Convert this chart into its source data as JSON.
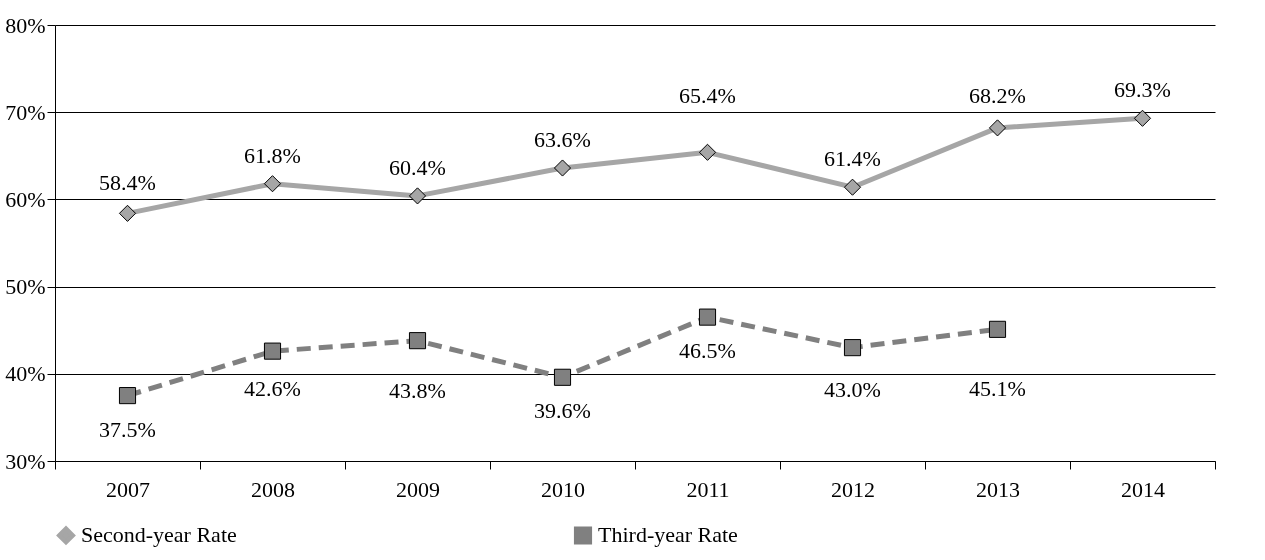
{
  "chart_data": {
    "type": "line",
    "categories": [
      "2007",
      "2008",
      "2009",
      "2010",
      "2011",
      "2012",
      "2013",
      "2014"
    ],
    "series": [
      {
        "name": "Second-year Rate",
        "color": "#a6a6a6",
        "marker": "diamond",
        "line_style": "solid",
        "values": [
          58.4,
          61.8,
          60.4,
          63.6,
          65.4,
          61.4,
          68.2,
          69.3
        ],
        "value_labels": [
          "58.4%",
          "61.8%",
          "60.4%",
          "63.6%",
          "65.4%",
          "61.4%",
          "68.2%",
          "69.3%"
        ]
      },
      {
        "name": "Third-year Rate",
        "color": "#808080",
        "marker": "square",
        "line_style": "dashed",
        "values": [
          37.5,
          42.6,
          43.8,
          39.6,
          46.5,
          43.0,
          45.1,
          null
        ],
        "value_labels": [
          "37.5%",
          "42.6%",
          "43.8%",
          "39.6%",
          "46.5%",
          "43.0%",
          "45.1%",
          null
        ]
      }
    ],
    "ylim": [
      30,
      80
    ],
    "yticks": [
      {
        "value": 30,
        "label": "30%"
      },
      {
        "value": 40,
        "label": "40%"
      },
      {
        "value": 50,
        "label": "50%"
      },
      {
        "value": 60,
        "label": "60%"
      },
      {
        "value": 70,
        "label": "70%"
      },
      {
        "value": 80,
        "label": "80%"
      }
    ],
    "grid": "y",
    "legend": "bottom"
  }
}
